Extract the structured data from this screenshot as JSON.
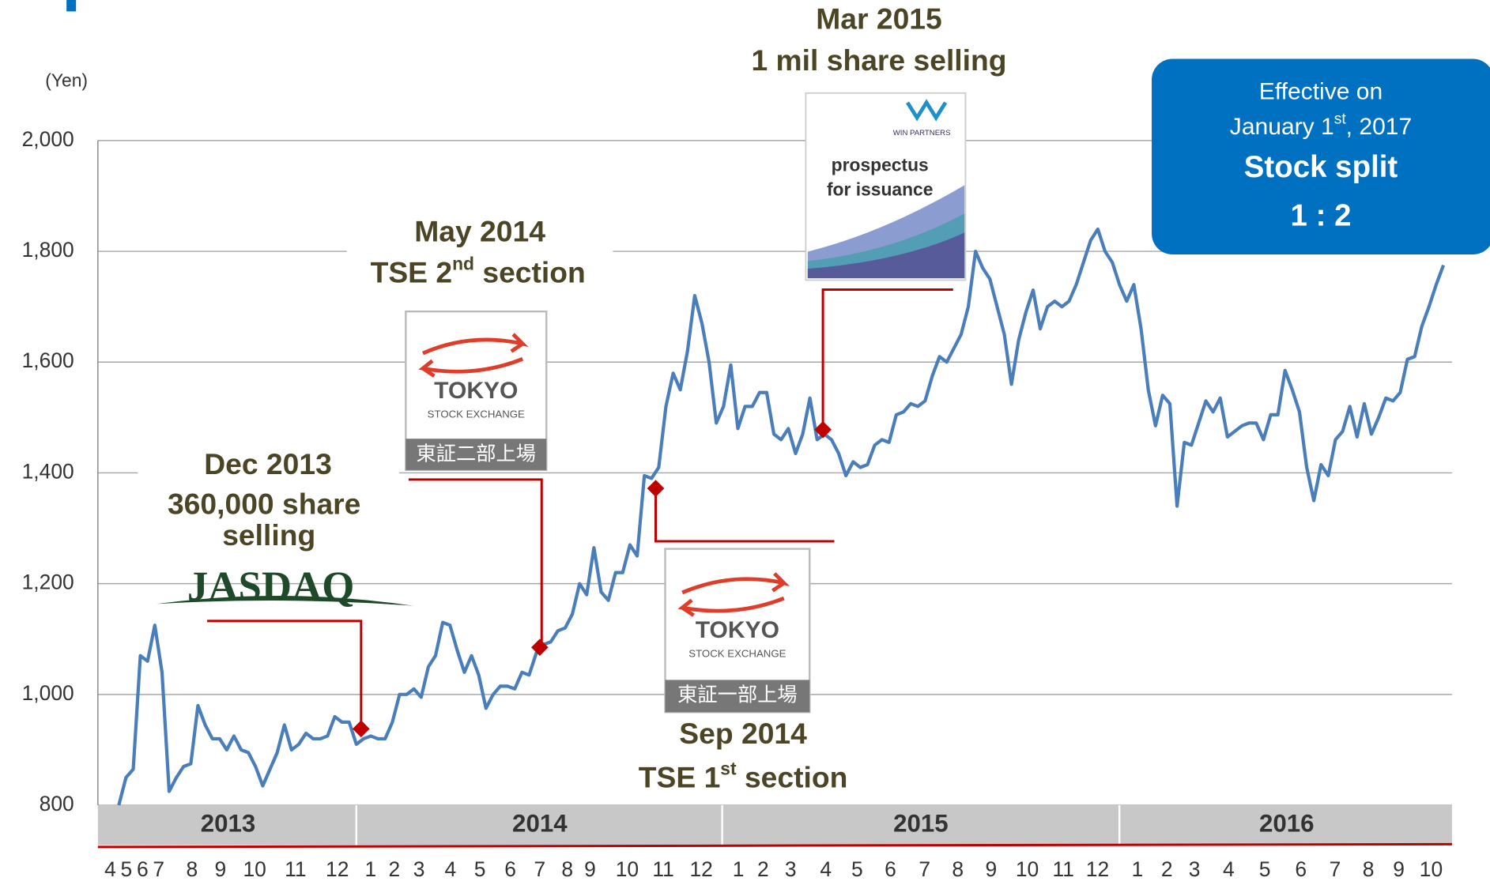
{
  "chart_data": {
    "type": "line",
    "y_label": "(Yen)",
    "ylim": [
      800,
      2000
    ],
    "yticks": [
      800,
      {
        "value": 1000,
        "label": "1,000"
      },
      {
        "value": 1200,
        "label": "1,200"
      },
      {
        "value": 1400,
        "label": "1,400"
      },
      {
        "value": 1600,
        "label": "1,600"
      },
      {
        "value": 1800,
        "label": "1,800"
      },
      {
        "value": 2000,
        "label": "2,000"
      }
    ],
    "grid": true,
    "color": "#4a7ebb",
    "values": [
      800,
      850,
      865,
      1070,
      1060,
      1125,
      1040,
      825,
      850,
      870,
      875,
      980,
      945,
      920,
      920,
      900,
      925,
      900,
      895,
      870,
      835,
      865,
      895,
      945,
      900,
      910,
      930,
      920,
      920,
      925,
      960,
      950,
      950,
      910,
      920,
      925,
      920,
      920,
      950,
      1000,
      1000,
      1010,
      995,
      1050,
      1070,
      1130,
      1125,
      1080,
      1040,
      1070,
      1035,
      975,
      1000,
      1015,
      1015,
      1010,
      1040,
      1035,
      1075,
      1090,
      1095,
      1115,
      1120,
      1145,
      1200,
      1180,
      1265,
      1185,
      1170,
      1220,
      1220,
      1270,
      1250,
      1395,
      1390,
      1410,
      1520,
      1580,
      1550,
      1620,
      1720,
      1670,
      1600,
      1490,
      1520,
      1595,
      1480,
      1520,
      1520,
      1545,
      1545,
      1470,
      1460,
      1480,
      1435,
      1470,
      1535,
      1460,
      1470,
      1460,
      1435,
      1395,
      1420,
      1410,
      1415,
      1450,
      1460,
      1455,
      1505,
      1510,
      1525,
      1520,
      1530,
      1575,
      1610,
      1600,
      1625,
      1650,
      1700,
      1800,
      1770,
      1750,
      1700,
      1650,
      1560,
      1640,
      1690,
      1730,
      1660,
      1700,
      1710,
      1700,
      1710,
      1740,
      1780,
      1820,
      1840,
      1800,
      1780,
      1740,
      1710,
      1740,
      1660,
      1550,
      1485,
      1540,
      1525,
      1340,
      1455,
      1450,
      1490,
      1530,
      1510,
      1535,
      1465,
      1475,
      1485,
      1490,
      1490,
      1460,
      1505,
      1505,
      1585,
      1550,
      1510,
      1410,
      1350,
      1415,
      1395,
      1460,
      1475,
      1520,
      1465,
      1525,
      1470,
      1500,
      1535,
      1530,
      1545,
      1605,
      1610,
      1665,
      1700,
      1740,
      1775
    ],
    "years": [
      2013,
      2014,
      2015,
      2016
    ],
    "months": [
      4,
      5,
      6,
      7,
      8,
      9,
      10,
      11,
      12,
      1,
      2,
      3,
      4,
      5,
      6,
      7,
      8,
      9,
      10,
      11,
      12,
      1,
      2,
      3,
      4,
      5,
      6,
      7,
      8,
      9,
      10,
      11,
      12,
      1,
      2,
      3,
      4,
      5,
      6,
      7,
      8,
      9,
      10
    ],
    "events": [
      {
        "value": 938,
        "lines": [
          "Dec 2013",
          "360,000 share",
          "selling"
        ],
        "logo": "JASDAQ"
      },
      {
        "value": 1085,
        "title": "May 2014",
        "sub": [
          "TSE 2",
          "nd",
          " section"
        ],
        "logo": [
          "TOKYO",
          "STOCK EXCHANGE",
          "東証二部上場"
        ]
      },
      {
        "value": 1372,
        "title": "Sep 2014",
        "sub": [
          "TSE 1",
          "st",
          " section"
        ],
        "logo": [
          "TOKYO",
          "STOCK EXCHANGE",
          "東証一部上場"
        ]
      },
      {
        "value": 1478,
        "lines": [
          "Mar 2015",
          "1 mil share selling"
        ],
        "logo": [
          "WIN PARTNERS",
          "prospectus",
          "for issuance"
        ]
      }
    ],
    "callout": {
      "line1": "Effective on",
      "line2": [
        "January 1",
        "st",
        ", 2017"
      ],
      "line3": "Stock split",
      "line4": "1 : 2"
    }
  }
}
